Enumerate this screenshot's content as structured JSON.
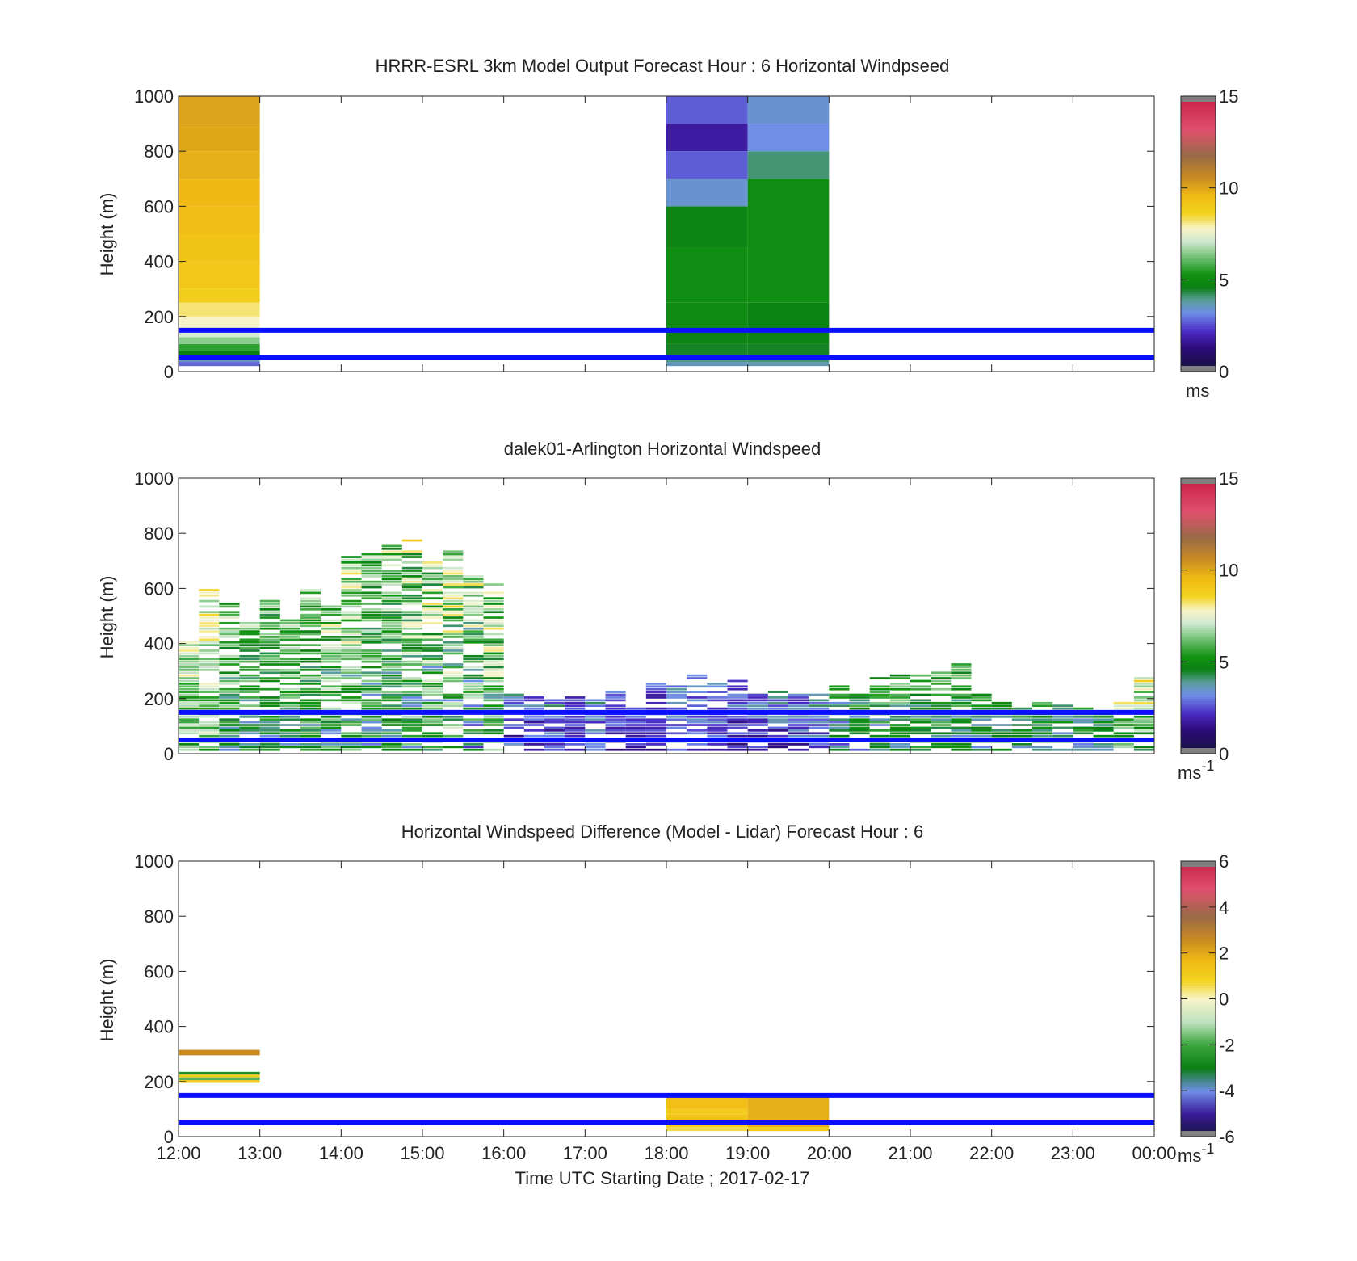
{
  "chart_data": [
    {
      "type": "heatmap",
      "title": "HRRR-ESRL 3km Model Output   Forecast Hour : 6 Horizontal Windpseed",
      "ylabel": "Height (m)",
      "xlabel": "",
      "ylim": [
        0,
        1000
      ],
      "yticks": [
        "0",
        "200",
        "400",
        "600",
        "800",
        "1000"
      ],
      "xlim": [
        12,
        24
      ],
      "show_xticklabels": false,
      "colorbar": {
        "min": 0,
        "max": 15,
        "ticks": [
          "0",
          "5",
          "10",
          "15"
        ],
        "unit": "ms",
        "unit_sup": "",
        "scale": "speed"
      },
      "hlines": [
        50,
        150
      ],
      "cells": [
        {
          "t0": 12,
          "t1": 13,
          "h0": 20,
          "h1": 35,
          "v": 2.8
        },
        {
          "t0": 12,
          "t1": 13,
          "h0": 35,
          "h1": 50,
          "v": 3.5
        },
        {
          "t0": 12,
          "t1": 13,
          "h0": 50,
          "h1": 75,
          "v": 4.6
        },
        {
          "t0": 12,
          "t1": 13,
          "h0": 75,
          "h1": 100,
          "v": 5.6
        },
        {
          "t0": 12,
          "t1": 13,
          "h0": 100,
          "h1": 125,
          "v": 6.5
        },
        {
          "t0": 12,
          "t1": 13,
          "h0": 125,
          "h1": 150,
          "v": 7.2
        },
        {
          "t0": 12,
          "t1": 13,
          "h0": 150,
          "h1": 200,
          "v": 7.8
        },
        {
          "t0": 12,
          "t1": 13,
          "h0": 200,
          "h1": 250,
          "v": 8.2
        },
        {
          "t0": 12,
          "t1": 13,
          "h0": 250,
          "h1": 300,
          "v": 8.8
        },
        {
          "t0": 12,
          "t1": 13,
          "h0": 300,
          "h1": 400,
          "v": 9.0
        },
        {
          "t0": 12,
          "t1": 13,
          "h0": 400,
          "h1": 500,
          "v": 9.2
        },
        {
          "t0": 12,
          "t1": 13,
          "h0": 500,
          "h1": 600,
          "v": 9.4
        },
        {
          "t0": 12,
          "t1": 13,
          "h0": 600,
          "h1": 700,
          "v": 9.6
        },
        {
          "t0": 12,
          "t1": 13,
          "h0": 700,
          "h1": 800,
          "v": 9.8
        },
        {
          "t0": 12,
          "t1": 13,
          "h0": 800,
          "h1": 900,
          "v": 10.0
        },
        {
          "t0": 12,
          "t1": 13,
          "h0": 900,
          "h1": 1000,
          "v": 10.1
        },
        {
          "t0": 18,
          "t1": 19,
          "h0": 20,
          "h1": 35,
          "v": 3.6
        },
        {
          "t0": 18,
          "t1": 19,
          "h0": 35,
          "h1": 60,
          "v": 4.0
        },
        {
          "t0": 18,
          "t1": 19,
          "h0": 60,
          "h1": 100,
          "v": 4.5
        },
        {
          "t0": 18,
          "t1": 19,
          "h0": 100,
          "h1": 150,
          "v": 4.8
        },
        {
          "t0": 18,
          "t1": 19,
          "h0": 150,
          "h1": 250,
          "v": 5.0
        },
        {
          "t0": 18,
          "t1": 19,
          "h0": 250,
          "h1": 450,
          "v": 5.1
        },
        {
          "t0": 18,
          "t1": 19,
          "h0": 450,
          "h1": 600,
          "v": 4.8
        },
        {
          "t0": 18,
          "t1": 19,
          "h0": 600,
          "h1": 700,
          "v": 3.4
        },
        {
          "t0": 18,
          "t1": 19,
          "h0": 700,
          "h1": 800,
          "v": 2.7
        },
        {
          "t0": 18,
          "t1": 19,
          "h0": 800,
          "h1": 900,
          "v": 1.8
        },
        {
          "t0": 18,
          "t1": 19,
          "h0": 900,
          "h1": 1000,
          "v": 2.7
        },
        {
          "t0": 19,
          "t1": 20,
          "h0": 20,
          "h1": 35,
          "v": 3.7
        },
        {
          "t0": 19,
          "t1": 20,
          "h0": 35,
          "h1": 60,
          "v": 4.1
        },
        {
          "t0": 19,
          "t1": 20,
          "h0": 60,
          "h1": 100,
          "v": 4.5
        },
        {
          "t0": 19,
          "t1": 20,
          "h0": 100,
          "h1": 150,
          "v": 4.8
        },
        {
          "t0": 19,
          "t1": 20,
          "h0": 150,
          "h1": 250,
          "v": 4.7
        },
        {
          "t0": 19,
          "t1": 20,
          "h0": 250,
          "h1": 700,
          "v": 5.1
        },
        {
          "t0": 19,
          "t1": 20,
          "h0": 700,
          "h1": 800,
          "v": 4.1
        },
        {
          "t0": 19,
          "t1": 20,
          "h0": 800,
          "h1": 900,
          "v": 3.2
        },
        {
          "t0": 19,
          "t1": 20,
          "h0": 900,
          "h1": 1000,
          "v": 3.4
        }
      ]
    },
    {
      "type": "heatmap",
      "title": "dalek01-Arlington  Horizontal Windspeed",
      "ylabel": "Height (m)",
      "xlabel": "",
      "ylim": [
        0,
        1000
      ],
      "yticks": [
        "0",
        "200",
        "400",
        "600",
        "800",
        "1000"
      ],
      "xlim": [
        12,
        24
      ],
      "show_xticklabels": false,
      "colorbar": {
        "min": 0,
        "max": 15,
        "ticks": [
          "0",
          "5",
          "10",
          "15"
        ],
        "unit": "ms",
        "unit_sup": "-1",
        "scale": "speed"
      },
      "hlines": [
        50,
        150
      ],
      "columns": [
        {
          "t": 12.0,
          "top": 410,
          "vmin": 4.5,
          "vmax": 8.5
        },
        {
          "t": 12.25,
          "top": 600,
          "vmin": 5.0,
          "vmax": 8.8
        },
        {
          "t": 12.5,
          "top": 550,
          "vmin": 3.0,
          "vmax": 8.0
        },
        {
          "t": 12.75,
          "top": 480,
          "vmin": 3.0,
          "vmax": 7.5
        },
        {
          "t": 13.0,
          "top": 560,
          "vmin": 3.0,
          "vmax": 7.0
        },
        {
          "t": 13.25,
          "top": 490,
          "vmin": 3.0,
          "vmax": 8.0
        },
        {
          "t": 13.5,
          "top": 600,
          "vmin": 3.0,
          "vmax": 8.0
        },
        {
          "t": 13.75,
          "top": 540,
          "vmin": 2.5,
          "vmax": 8.5
        },
        {
          "t": 14.0,
          "top": 720,
          "vmin": 2.5,
          "vmax": 9.0
        },
        {
          "t": 14.25,
          "top": 740,
          "vmin": 2.5,
          "vmax": 8.0
        },
        {
          "t": 14.5,
          "top": 760,
          "vmin": 2.5,
          "vmax": 8.0
        },
        {
          "t": 14.75,
          "top": 780,
          "vmin": 2.0,
          "vmax": 9.0
        },
        {
          "t": 15.0,
          "top": 700,
          "vmin": 2.0,
          "vmax": 9.5
        },
        {
          "t": 15.25,
          "top": 740,
          "vmin": 2.5,
          "vmax": 9.5
        },
        {
          "t": 15.5,
          "top": 650,
          "vmin": 2.0,
          "vmax": 9.0
        },
        {
          "t": 15.75,
          "top": 620,
          "vmin": 3.0,
          "vmax": 9.0
        },
        {
          "t": 16.0,
          "top": 220,
          "vmin": 1.0,
          "vmax": 4.5
        },
        {
          "t": 16.25,
          "top": 220,
          "vmin": 1.0,
          "vmax": 4.0
        },
        {
          "t": 16.5,
          "top": 200,
          "vmin": 1.0,
          "vmax": 4.5
        },
        {
          "t": 16.75,
          "top": 210,
          "vmin": 1.0,
          "vmax": 3.5
        },
        {
          "t": 17.0,
          "top": 200,
          "vmin": 1.0,
          "vmax": 4.5
        },
        {
          "t": 17.25,
          "top": 230,
          "vmin": 1.0,
          "vmax": 3.5
        },
        {
          "t": 17.5,
          "top": 190,
          "vmin": 1.0,
          "vmax": 3.5
        },
        {
          "t": 17.75,
          "top": 260,
          "vmin": 1.0,
          "vmax": 3.5
        },
        {
          "t": 18.0,
          "top": 250,
          "vmin": 2.0,
          "vmax": 4.0
        },
        {
          "t": 18.25,
          "top": 300,
          "vmin": 1.5,
          "vmax": 4.0
        },
        {
          "t": 18.5,
          "top": 280,
          "vmin": 1.5,
          "vmax": 4.0
        },
        {
          "t": 18.75,
          "top": 270,
          "vmin": 1.0,
          "vmax": 4.0
        },
        {
          "t": 19.0,
          "top": 220,
          "vmin": 1.0,
          "vmax": 4.0
        },
        {
          "t": 19.25,
          "top": 230,
          "vmin": 1.0,
          "vmax": 4.5
        },
        {
          "t": 19.5,
          "top": 220,
          "vmin": 1.0,
          "vmax": 4.5
        },
        {
          "t": 19.75,
          "top": 220,
          "vmin": 1.5,
          "vmax": 4.5
        },
        {
          "t": 20.0,
          "top": 260,
          "vmin": 2.0,
          "vmax": 6.5
        },
        {
          "t": 20.25,
          "top": 250,
          "vmin": 2.5,
          "vmax": 6.5
        },
        {
          "t": 20.5,
          "top": 280,
          "vmin": 2.5,
          "vmax": 7.0
        },
        {
          "t": 20.75,
          "top": 290,
          "vmin": 3.0,
          "vmax": 7.0
        },
        {
          "t": 21.0,
          "top": 290,
          "vmin": 3.0,
          "vmax": 7.0
        },
        {
          "t": 21.25,
          "top": 300,
          "vmin": 3.0,
          "vmax": 7.0
        },
        {
          "t": 21.5,
          "top": 330,
          "vmin": 3.0,
          "vmax": 6.5
        },
        {
          "t": 21.75,
          "top": 220,
          "vmin": 3.0,
          "vmax": 6.0
        },
        {
          "t": 22.0,
          "top": 190,
          "vmin": 3.0,
          "vmax": 6.5
        },
        {
          "t": 22.25,
          "top": 180,
          "vmin": 3.0,
          "vmax": 6.0
        },
        {
          "t": 22.5,
          "top": 190,
          "vmin": 3.0,
          "vmax": 6.5
        },
        {
          "t": 22.75,
          "top": 190,
          "vmin": 2.5,
          "vmax": 6.0
        },
        {
          "t": 23.0,
          "top": 180,
          "vmin": 2.5,
          "vmax": 6.5
        },
        {
          "t": 23.25,
          "top": 160,
          "vmin": 2.5,
          "vmax": 6.0
        },
        {
          "t": 23.5,
          "top": 190,
          "vmin": 3.5,
          "vmax": 9.0
        },
        {
          "t": 23.75,
          "top": 290,
          "vmin": 4.0,
          "vmax": 9.5
        }
      ]
    },
    {
      "type": "heatmap",
      "title": "Horizontal Windspeed Difference (Model - Lidar) Forecast Hour : 6",
      "ylabel": "Height (m)",
      "xlabel": "Time UTC  Starting Date ; 2017-02-17",
      "ylim": [
        0,
        1000
      ],
      "yticks": [
        "0",
        "200",
        "400",
        "600",
        "800",
        "1000"
      ],
      "xlim": [
        12,
        24
      ],
      "xticks": [
        "12:00",
        "13:00",
        "14:00",
        "15:00",
        "16:00",
        "17:00",
        "18:00",
        "19:00",
        "20:00",
        "21:00",
        "22:00",
        "23:00",
        "00:00"
      ],
      "show_xticklabels": true,
      "colorbar": {
        "min": -6,
        "max": 6,
        "ticks": [
          "-6",
          "-4",
          "-2",
          "0",
          "2",
          "4",
          "6"
        ],
        "unit": "ms",
        "unit_sup": "-1",
        "scale": "diff"
      },
      "hlines": [
        50,
        150
      ],
      "cells": [
        {
          "t0": 12,
          "t1": 13,
          "h0": 295,
          "h1": 315,
          "v": 2.6
        },
        {
          "t0": 12,
          "t1": 13,
          "h0": 225,
          "h1": 235,
          "v": -2.6
        },
        {
          "t0": 12,
          "t1": 13,
          "h0": 215,
          "h1": 225,
          "v": 1.0
        },
        {
          "t0": 12,
          "t1": 13,
          "h0": 205,
          "h1": 215,
          "v": -1.8
        },
        {
          "t0": 12,
          "t1": 13,
          "h0": 195,
          "h1": 205,
          "v": 1.2
        },
        {
          "t0": 18,
          "t1": 19,
          "h0": 20,
          "h1": 35,
          "v": 0.6
        },
        {
          "t0": 18,
          "t1": 19,
          "h0": 35,
          "h1": 60,
          "v": 0.9
        },
        {
          "t0": 18,
          "t1": 19,
          "h0": 60,
          "h1": 80,
          "v": 1.4
        },
        {
          "t0": 18,
          "t1": 19,
          "h0": 80,
          "h1": 100,
          "v": 1.1
        },
        {
          "t0": 18,
          "t1": 19,
          "h0": 100,
          "h1": 145,
          "v": 1.5
        },
        {
          "t0": 19,
          "t1": 20,
          "h0": 20,
          "h1": 35,
          "v": 1.1
        },
        {
          "t0": 19,
          "t1": 20,
          "h0": 35,
          "h1": 145,
          "v": 1.9
        }
      ]
    }
  ]
}
